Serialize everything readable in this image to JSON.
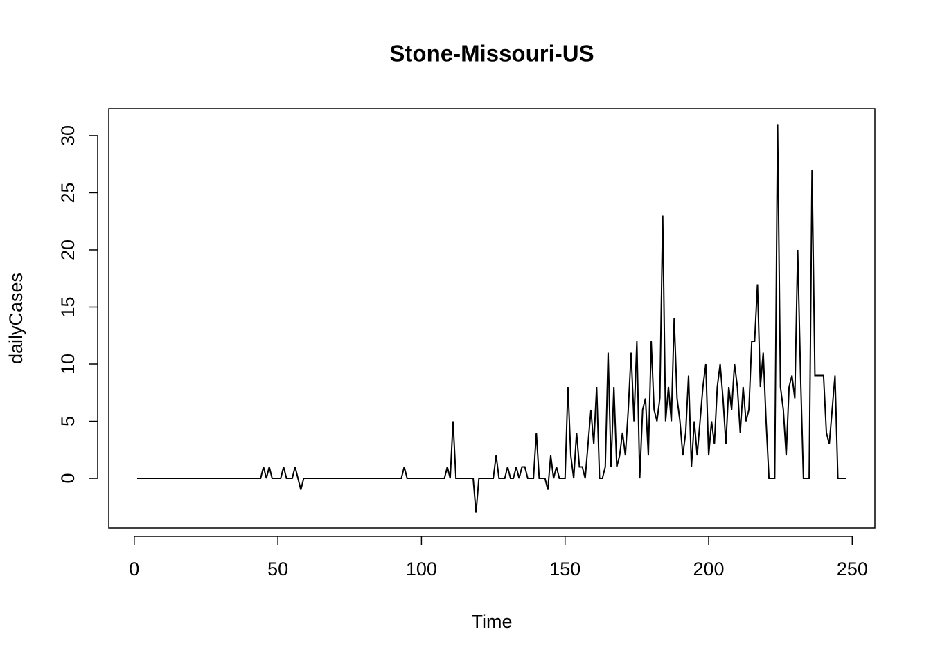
{
  "chart_data": {
    "type": "line",
    "title": "Stone-Missouri-US",
    "x_label": "Time",
    "y_label": "dailyCases",
    "x": [
      1,
      2,
      3,
      4,
      5,
      6,
      7,
      8,
      9,
      10,
      11,
      12,
      13,
      14,
      15,
      16,
      17,
      18,
      19,
      20,
      21,
      22,
      23,
      24,
      25,
      26,
      27,
      28,
      29,
      30,
      31,
      32,
      33,
      34,
      35,
      36,
      37,
      38,
      39,
      40,
      41,
      42,
      43,
      44,
      45,
      46,
      47,
      48,
      49,
      50,
      51,
      52,
      53,
      54,
      55,
      56,
      57,
      58,
      59,
      60,
      61,
      62,
      63,
      64,
      65,
      66,
      67,
      68,
      69,
      70,
      71,
      72,
      73,
      74,
      75,
      76,
      77,
      78,
      79,
      80,
      81,
      82,
      83,
      84,
      85,
      86,
      87,
      88,
      89,
      90,
      91,
      92,
      93,
      94,
      95,
      96,
      97,
      98,
      99,
      100,
      101,
      102,
      103,
      104,
      105,
      106,
      107,
      108,
      109,
      110,
      111,
      112,
      113,
      114,
      115,
      116,
      117,
      118,
      119,
      120,
      121,
      122,
      123,
      124,
      125,
      126,
      127,
      128,
      129,
      130,
      131,
      132,
      133,
      134,
      135,
      136,
      137,
      138,
      139,
      140,
      141,
      142,
      143,
      144,
      145,
      146,
      147,
      148,
      149,
      150,
      151,
      152,
      153,
      154,
      155,
      156,
      157,
      158,
      159,
      160,
      161,
      162,
      163,
      164,
      165,
      166,
      167,
      168,
      169,
      170,
      171,
      172,
      173,
      174,
      175,
      176,
      177,
      178,
      179,
      180,
      181,
      182,
      183,
      184,
      185,
      186,
      187,
      188,
      189,
      190,
      191,
      192,
      193,
      194,
      195,
      196,
      197,
      198,
      199,
      200,
      201,
      202,
      203,
      204,
      205,
      206,
      207,
      208,
      209,
      210,
      211,
      212,
      213,
      214,
      215,
      216,
      217,
      218,
      219,
      220,
      221,
      222,
      223,
      224,
      225,
      226,
      227,
      228,
      229,
      230,
      231,
      232,
      233,
      234,
      235,
      236,
      237,
      238,
      239,
      240,
      241,
      242,
      243,
      244,
      245,
      246,
      247,
      248
    ],
    "values": [
      0,
      0,
      0,
      0,
      0,
      0,
      0,
      0,
      0,
      0,
      0,
      0,
      0,
      0,
      0,
      0,
      0,
      0,
      0,
      0,
      0,
      0,
      0,
      0,
      0,
      0,
      0,
      0,
      0,
      0,
      0,
      0,
      0,
      0,
      0,
      0,
      0,
      0,
      0,
      0,
      0,
      0,
      0,
      0,
      1,
      0,
      1,
      0,
      0,
      0,
      0,
      1,
      0,
      0,
      0,
      1,
      0,
      -1,
      0,
      0,
      0,
      0,
      0,
      0,
      0,
      0,
      0,
      0,
      0,
      0,
      0,
      0,
      0,
      0,
      0,
      0,
      0,
      0,
      0,
      0,
      0,
      0,
      0,
      0,
      0,
      0,
      0,
      0,
      0,
      0,
      0,
      0,
      0,
      1,
      0,
      0,
      0,
      0,
      0,
      0,
      0,
      0,
      0,
      0,
      0,
      0,
      0,
      0,
      1,
      0,
      5,
      0,
      0,
      0,
      0,
      0,
      0,
      0,
      -3,
      0,
      0,
      0,
      0,
      0,
      0,
      2,
      0,
      0,
      0,
      1,
      0,
      0,
      1,
      0,
      1,
      1,
      0,
      0,
      0,
      4,
      0,
      0,
      0,
      -1,
      2,
      0,
      1,
      0,
      0,
      0,
      8,
      2,
      0,
      4,
      1,
      1,
      0,
      3,
      6,
      3,
      8,
      0,
      0,
      1,
      11,
      1,
      8,
      1,
      2,
      4,
      2,
      6,
      11,
      5,
      12,
      0,
      6,
      7,
      2,
      12,
      6,
      5,
      7,
      23,
      5,
      8,
      5,
      14,
      7,
      5,
      2,
      4,
      9,
      1,
      5,
      2,
      5,
      8,
      10,
      2,
      5,
      3,
      8,
      10,
      7,
      3,
      8,
      6,
      10,
      8,
      4,
      8,
      5,
      6,
      12,
      12,
      17,
      8,
      11,
      5,
      0,
      0,
      0,
      31,
      8,
      6,
      2,
      8,
      9,
      7,
      20,
      9,
      0,
      0,
      0,
      27,
      9,
      9,
      9,
      9,
      4,
      3,
      6,
      9,
      0,
      0,
      0,
      0
    ],
    "color": "#000000",
    "xlim": [
      -8.88,
      257.88
    ],
    "ylim": [
      -4.36,
      32.36
    ],
    "xticks": [
      0,
      50,
      100,
      150,
      200,
      250
    ],
    "yticks": [
      0,
      5,
      10,
      15,
      20,
      25,
      30
    ]
  }
}
